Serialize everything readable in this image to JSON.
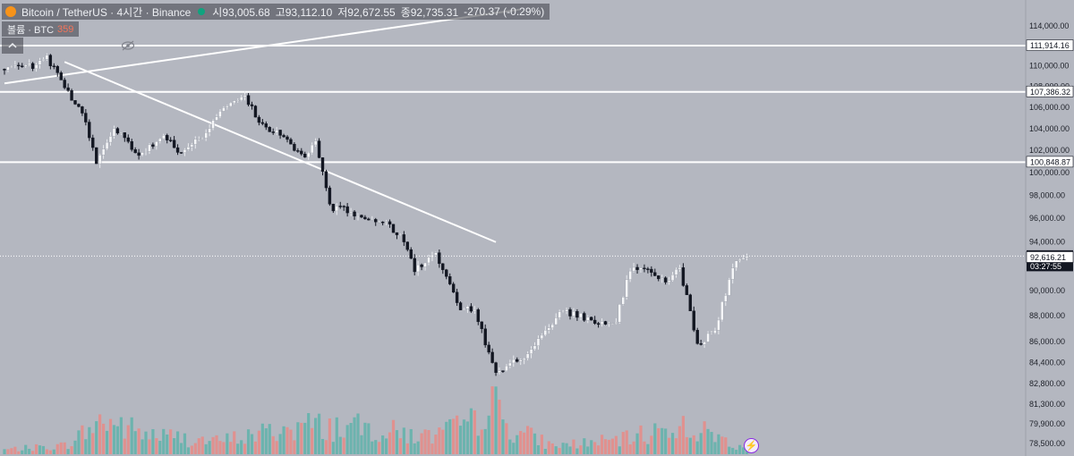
{
  "legend": {
    "symbol": "Bitcoin / TetherUS · 4시간 · Binance",
    "open": "시93,005.68",
    "high": "고93,112.10",
    "low": "저92,672.55",
    "close": "종92,735.31",
    "change": "-270.37 (-0.29%)"
  },
  "volume": {
    "label": "볼륨 · BTC",
    "value": "359"
  },
  "collapse_icon": "chevron-up-icon",
  "visibility_icon": "eye-icon",
  "bolt_icon": "lightning-icon",
  "price_axis": {
    "ticks": [
      "114,000.00",
      "112,000.00",
      "110,000.00",
      "108,000.00",
      "106,000.00",
      "104,000.00",
      "102,000.00",
      "100,000.00",
      "98,000.00",
      "96,000.00",
      "94,000.00",
      "92,000.00",
      "90,000.00",
      "88,000.00",
      "86,000.00",
      "84,400.00",
      "82,800.00",
      "81,300.00",
      "79,900.00",
      "78,500.00"
    ],
    "ylim": [
      78500,
      115000
    ]
  },
  "price_labels": [
    {
      "text": "111,914.16",
      "value": 111914.16,
      "style": "outline"
    },
    {
      "text": "107,386.32",
      "value": 107386.32,
      "style": "outline"
    },
    {
      "text": "100,848.87",
      "value": 100848.87,
      "style": "outline"
    },
    {
      "text": "92,735.31",
      "value": 92735.31,
      "style": "current"
    },
    {
      "text": "03:27:55",
      "value": 92500,
      "style": "countdown"
    },
    {
      "text": "92,616.21",
      "value": 92616.21,
      "style": "outline"
    }
  ],
  "colors": {
    "background": "#b4b7c0",
    "up_candle": "#f5f6f8",
    "down_candle": "#131722",
    "vol_up": "#5fb3aa",
    "vol_down": "#e88b86"
  },
  "chart_data": {
    "type": "candlestick",
    "horizontal_levels": [
      111914.16,
      107386.32,
      100848.87
    ],
    "current_price": 92735.31,
    "trend_lines": [
      {
        "from": {
          "bar": 0,
          "price": 108200
        },
        "to": {
          "bar": 146,
          "price": 115600
        }
      },
      {
        "from": {
          "bar": 17,
          "price": 110300
        },
        "to": {
          "bar": 139,
          "price": 93900
        }
      }
    ],
    "anchors": [
      [
        0,
        109600
      ],
      [
        9,
        109900
      ],
      [
        12,
        110700
      ],
      [
        18,
        107400
      ],
      [
        22,
        105300
      ],
      [
        26,
        101000
      ],
      [
        31,
        103900
      ],
      [
        38,
        101600
      ],
      [
        45,
        103300
      ],
      [
        50,
        101600
      ],
      [
        57,
        103600
      ],
      [
        63,
        106300
      ],
      [
        68,
        106900
      ],
      [
        73,
        104200
      ],
      [
        79,
        103300
      ],
      [
        85,
        101100
      ],
      [
        88,
        102700
      ],
      [
        92,
        96900
      ],
      [
        97,
        96600
      ],
      [
        103,
        95600
      ],
      [
        107,
        95800
      ],
      [
        113,
        94000
      ],
      [
        116,
        91600
      ],
      [
        122,
        92900
      ],
      [
        129,
        88600
      ],
      [
        133,
        88400
      ],
      [
        137,
        85000
      ],
      [
        139,
        83500
      ],
      [
        144,
        84300
      ],
      [
        147,
        84600
      ],
      [
        153,
        86800
      ],
      [
        158,
        88300
      ],
      [
        163,
        87900
      ],
      [
        167,
        87300
      ],
      [
        173,
        87600
      ],
      [
        177,
        91700
      ],
      [
        182,
        91500
      ],
      [
        187,
        90500
      ],
      [
        191,
        91800
      ],
      [
        196,
        85600
      ],
      [
        201,
        86800
      ],
      [
        206,
        91800
      ],
      [
        210,
        93100
      ]
    ],
    "volume_anchors": [
      [
        0,
        0.08
      ],
      [
        17,
        0.15
      ],
      [
        28,
        0.6
      ],
      [
        40,
        0.35
      ],
      [
        60,
        0.22
      ],
      [
        85,
        0.5
      ],
      [
        103,
        0.45
      ],
      [
        120,
        0.3
      ],
      [
        133,
        0.55
      ],
      [
        137,
        1.0
      ],
      [
        142,
        0.5
      ],
      [
        155,
        0.15
      ],
      [
        175,
        0.25
      ],
      [
        190,
        0.5
      ],
      [
        200,
        0.35
      ],
      [
        210,
        0.1
      ]
    ]
  }
}
